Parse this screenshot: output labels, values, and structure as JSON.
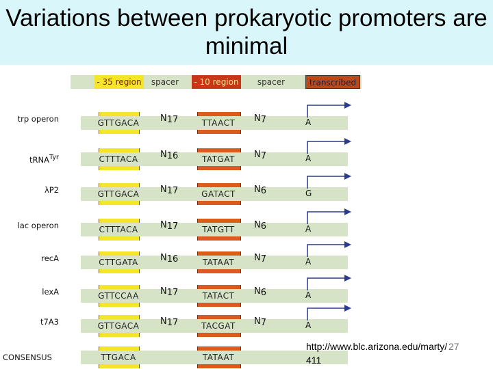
{
  "title": "Variations between prokaryotic promoters are minimal",
  "header": {
    "minus35": "- 35 region",
    "spacer1": "spacer",
    "minus10": "- 10 region",
    "spacer2": "spacer",
    "transcribed": "transcribed"
  },
  "rows": [
    {
      "label": "trp operon",
      "seq35": "GTTGACA",
      "n1": "N",
      "n1sub": "17",
      "seq10": "TTAACT",
      "n2": "N",
      "n2sub": "7",
      "start": "A",
      "arrow": true
    },
    {
      "label": "tRNA",
      "labelsup": "Tyr",
      "seq35": "CTTTACA",
      "n1": "N",
      "n1sub": "16",
      "seq10": "TATGAT",
      "n2": "N",
      "n2sub": "7",
      "start": "A",
      "arrow": true
    },
    {
      "label": "λP2",
      "seq35": "GTTGACA",
      "n1": "N",
      "n1sub": "17",
      "seq10": "GATACT",
      "n2": "N",
      "n2sub": "6",
      "start": "G",
      "arrow": true
    },
    {
      "label": "lac operon",
      "seq35": "CTTTACA",
      "n1": "N",
      "n1sub": "17",
      "seq10": "TATGTT",
      "n2": "N",
      "n2sub": "6",
      "start": "A",
      "arrow": true
    },
    {
      "label": "recA",
      "seq35": "CTTGATA",
      "n1": "N",
      "n1sub": "16",
      "seq10": "TATAAT",
      "n2": "N",
      "n2sub": "7",
      "start": "A",
      "arrow": true
    },
    {
      "label": "lexA",
      "seq35": "GTTCCAA",
      "n1": "N",
      "n1sub": "17",
      "seq10": "TATACT",
      "n2": "N",
      "n2sub": "6",
      "start": "A",
      "arrow": true
    },
    {
      "label": "t7A3",
      "seq35": "GTTGACA",
      "n1": "N",
      "n1sub": "17",
      "seq10": "TACGAT",
      "n2": "N",
      "n2sub": "7",
      "start": "A",
      "arrow": true
    },
    {
      "label": "CONSENSUS",
      "seq35": "TTGACA",
      "n1": "",
      "n1sub": "",
      "seq10": "TATAAT",
      "n2": "",
      "n2sub": "",
      "start": "",
      "arrow": false
    }
  ],
  "footer": {
    "url_line1": "http://www.blc.arizona.edu/marty/",
    "url_line2": "411",
    "page_number": "27"
  },
  "colors": {
    "title_band": "#d9f6fb",
    "bar": "#d6e3c6",
    "minus35": "#f4e42a",
    "minus10": "#dc5a1c",
    "transcribed": "#b94a1c",
    "arrow": "#2a3a8c"
  }
}
